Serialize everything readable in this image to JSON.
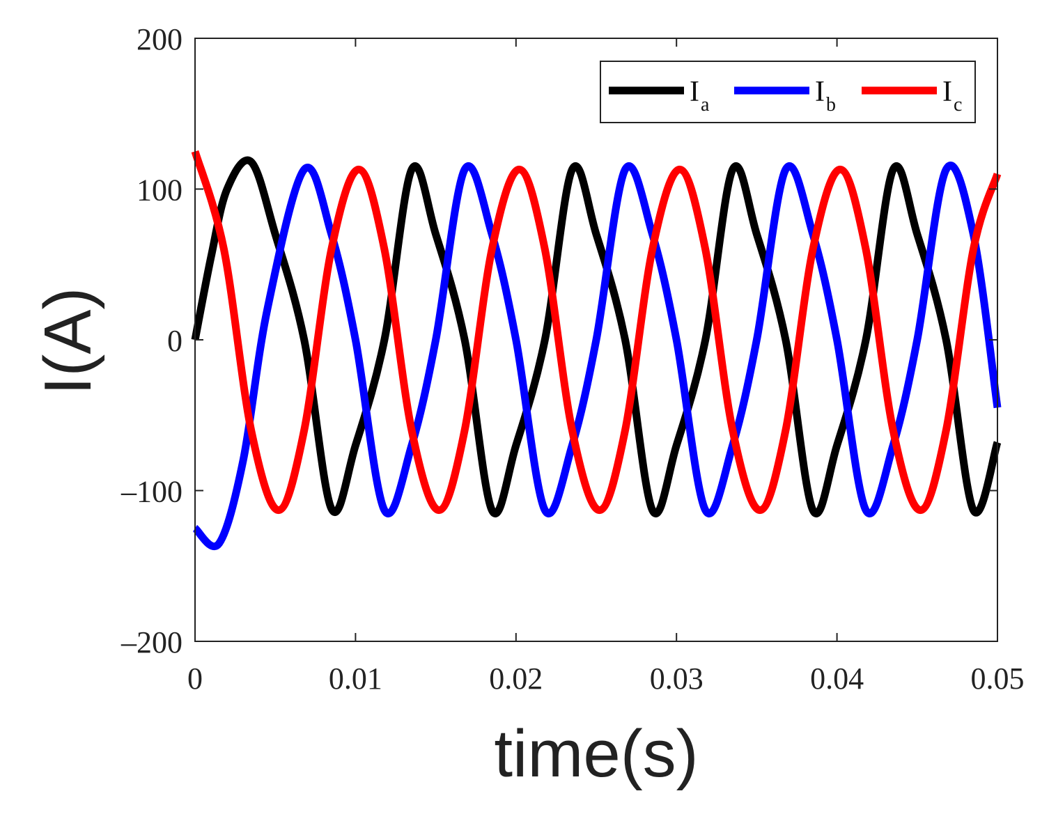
{
  "chart_data": {
    "type": "line",
    "title": "",
    "xlabel": "time(s)",
    "ylabel": "I(A)",
    "xlim": [
      0,
      0.05
    ],
    "ylim": [
      -200,
      200
    ],
    "xticks": [
      0,
      0.01,
      0.02,
      0.03,
      0.04,
      0.05
    ],
    "xtick_labels": [
      "0",
      "0.01",
      "0.02",
      "0.03",
      "0.04",
      "0.05"
    ],
    "yticks": [
      200,
      100,
      0,
      -100,
      -200
    ],
    "ytick_labels": [
      "200",
      "100",
      "0",
      "–100",
      "–200"
    ],
    "grid": false,
    "legend_position": "top-right",
    "series": [
      {
        "name": "I",
        "subscript": "a",
        "color": "#000000",
        "x": [
          0,
          0.001,
          0.002,
          0.0035,
          0.005,
          0.0068,
          0.0085,
          0.01,
          0.0118,
          0.0135,
          0.015,
          0.0168,
          0.0185,
          0.02,
          0.0218,
          0.0235,
          0.025,
          0.0268,
          0.0285,
          0.03,
          0.0318,
          0.0335,
          0.035,
          0.0368,
          0.0385,
          0.04,
          0.0418,
          0.0435,
          0.045,
          0.0468,
          0.0485,
          0.05
        ],
        "y": [
          0,
          55,
          100,
          118,
          70,
          0,
          -112,
          -70,
          0,
          113,
          70,
          0,
          -113,
          -70,
          0,
          113,
          70,
          0,
          -113,
          -70,
          0,
          113,
          70,
          0,
          -113,
          -70,
          0,
          113,
          70,
          0,
          -113,
          -68
        ]
      },
      {
        "name": "I",
        "subscript": "b",
        "color": "#0000ff",
        "x": [
          0,
          0.0015,
          0.003,
          0.0045,
          0.0068,
          0.0085,
          0.01,
          0.0118,
          0.0135,
          0.015,
          0.0168,
          0.0185,
          0.02,
          0.0218,
          0.0235,
          0.025,
          0.0268,
          0.0285,
          0.03,
          0.0318,
          0.0335,
          0.035,
          0.0368,
          0.0385,
          0.04,
          0.0418,
          0.0435,
          0.045,
          0.0468,
          0.0485,
          0.05
        ],
        "y": [
          -125,
          -135,
          -80,
          20,
          113,
          70,
          0,
          -113,
          -70,
          0,
          113,
          70,
          0,
          -113,
          -70,
          0,
          113,
          70,
          0,
          -113,
          -70,
          0,
          113,
          70,
          0,
          -113,
          -70,
          0,
          113,
          70,
          -45
        ]
      },
      {
        "name": "I",
        "subscript": "c",
        "color": "#ff0000",
        "x": [
          0,
          0.0018,
          0.0035,
          0.0052,
          0.0068,
          0.0085,
          0.0102,
          0.0118,
          0.0135,
          0.0152,
          0.0168,
          0.0185,
          0.0202,
          0.0218,
          0.0235,
          0.0252,
          0.0268,
          0.0285,
          0.0302,
          0.0318,
          0.0335,
          0.0352,
          0.0368,
          0.0385,
          0.0402,
          0.0418,
          0.0435,
          0.0452,
          0.0468,
          0.0485,
          0.05
        ],
        "y": [
          125,
          60,
          -60,
          -113,
          -60,
          60,
          113,
          60,
          -60,
          -113,
          -60,
          60,
          113,
          60,
          -60,
          -113,
          -60,
          60,
          113,
          60,
          -60,
          -113,
          -60,
          60,
          113,
          60,
          -60,
          -113,
          -60,
          60,
          110
        ]
      }
    ]
  }
}
